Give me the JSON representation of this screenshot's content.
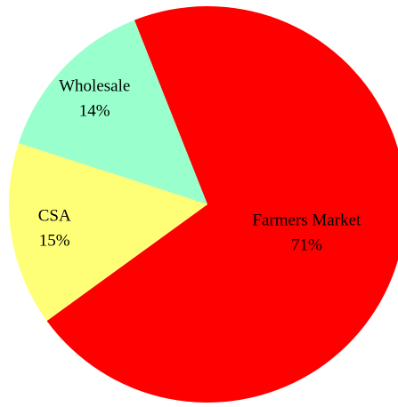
{
  "chart_data": {
    "type": "pie",
    "categories": [
      "Farmers Market",
      "Wholesale",
      "CSA"
    ],
    "values": [
      71,
      14,
      15
    ],
    "value_labels": [
      "71%",
      "14%",
      "15%"
    ],
    "colors": [
      "#ff0000",
      "#99ffcc",
      "#ffff77"
    ]
  }
}
